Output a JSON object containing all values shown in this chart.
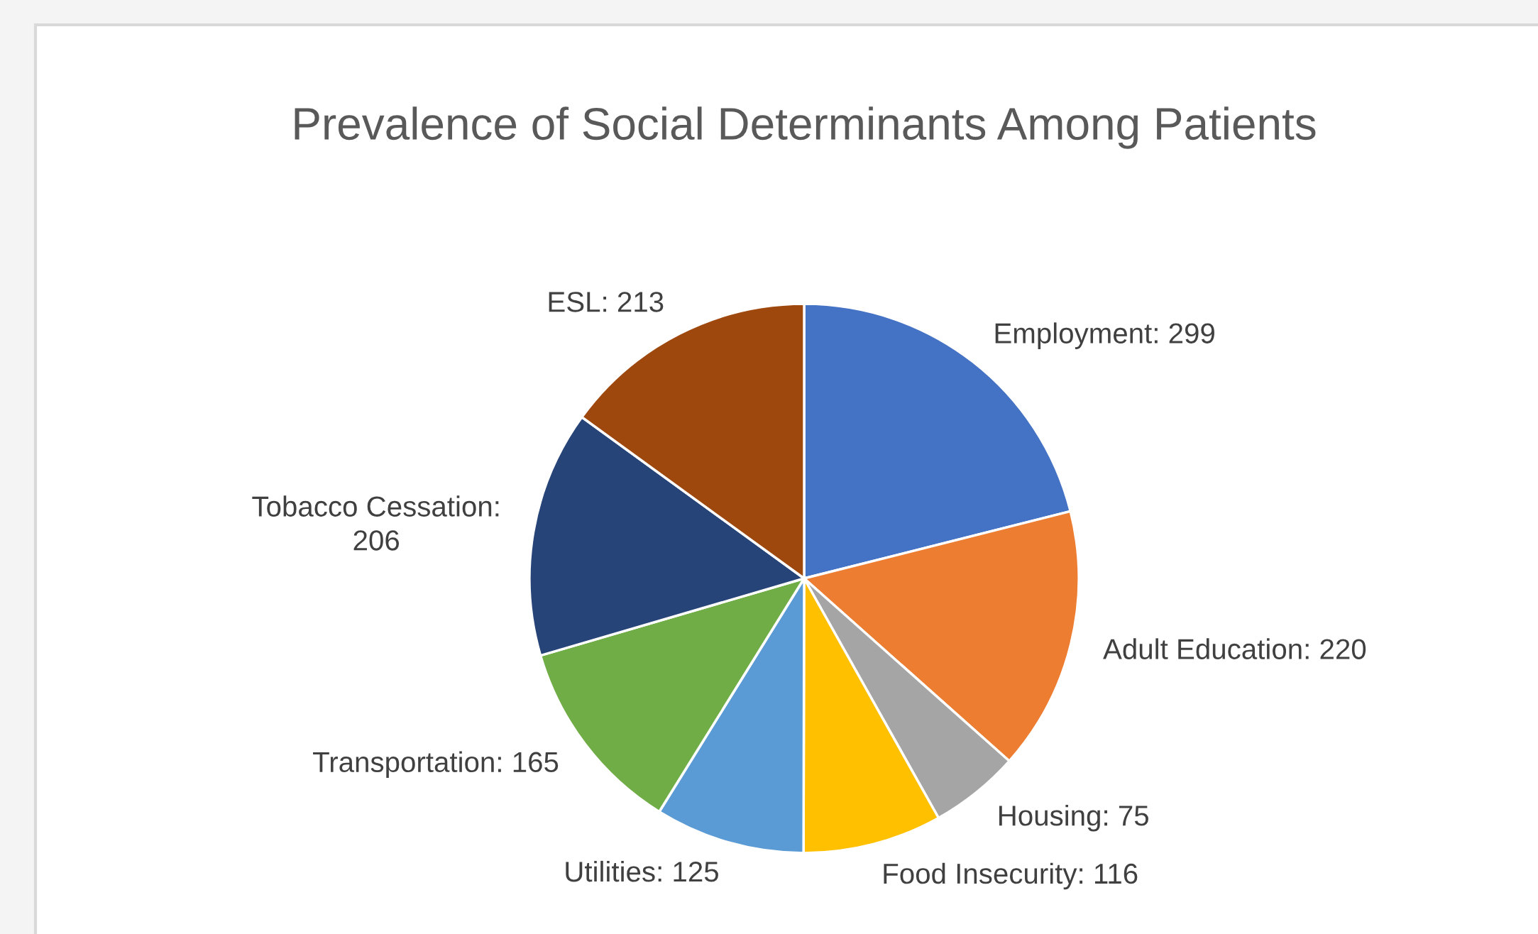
{
  "chart_data": {
    "type": "pie",
    "title": "Prevalence of Social Determinants Among Patients",
    "categories": [
      "Employment: 299",
      "Adult Education: 220",
      "Housing: 75",
      "Food Insecurity: 116",
      "Utilities: 125",
      "Transportation: 165",
      "Tobacco Cessation: 206",
      "ESL: 213"
    ],
    "values": [
      299,
      220,
      75,
      116,
      125,
      165,
      206,
      213
    ],
    "colors": [
      "#4472c4",
      "#ed7d31",
      "#a5a5a5",
      "#ffc000",
      "#5b9bd5",
      "#70ad47",
      "#264478",
      "#9e480e"
    ],
    "legend": false
  }
}
